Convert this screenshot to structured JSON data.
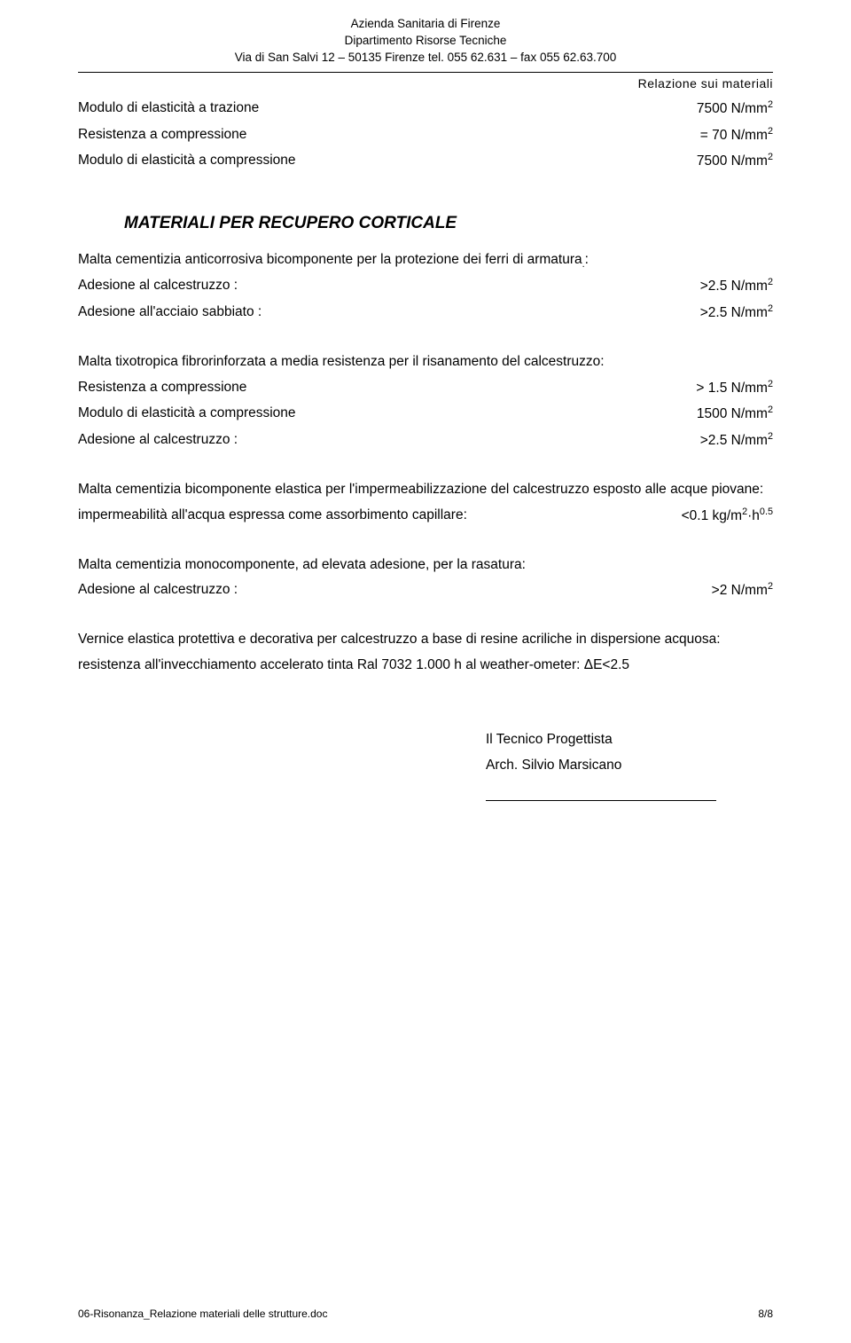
{
  "header": {
    "line1": "Azienda  Sanitaria  di  Firenze",
    "line2": "Dipartimento Risorse Tecniche",
    "line3": "Via  di San Salvi 12 – 50135 Firenze tel. 055 62.631 – fax 055 62.63.700"
  },
  "subtitle": "Relazione sui materiali",
  "top_props": [
    {
      "label": "Modulo di elasticità a trazione",
      "value": "7500 N/mm",
      "sup": "2"
    },
    {
      "label": "Resistenza a compressione",
      "value": "= 70 N/mm",
      "sup": "2"
    },
    {
      "label": "Modulo di elasticità a compressione",
      "value": "7500 N/mm",
      "sup": "2"
    }
  ],
  "section_title": "MATERIALI PER RECUPERO CORTICALE",
  "block1": {
    "intro": "Malta cementizia anticorrosiva bicomponente per la protezione dei ferri di armatura",
    "rows": [
      {
        "label": "Adesione al calcestruzzo :",
        "value": ">2.5 N/mm",
        "sup": "2"
      },
      {
        "label": "Adesione all'acciaio sabbiato :",
        "value": ">2.5 N/mm",
        "sup": "2"
      }
    ]
  },
  "block2": {
    "intro": "Malta tixotropica fibrorinforzata a media resistenza per il risanamento del calcestruzzo:",
    "rows": [
      {
        "label": "Resistenza a compressione",
        "value": "> 1.5 N/mm",
        "sup": "2"
      },
      {
        "label": "Modulo di elasticità a compressione",
        "value": "1500 N/mm",
        "sup": "2"
      },
      {
        "label": "Adesione al calcestruzzo :",
        "value": ">2.5 N/mm",
        "sup": "2"
      }
    ]
  },
  "block3": {
    "intro1": "Malta cementizia bicomponente elastica per l'impermeabilizzazione del calcestruzzo esposto alle acque piovane:",
    "row_label": "impermeabilità all'acqua espressa come assorbimento capillare:",
    "row_value": "<0.1 kg/m",
    "row_sup": "2",
    "row_tail": "·h",
    "row_sup2": "0.5"
  },
  "block4": {
    "intro": "Malta cementizia monocomponente, ad elevata adesione, per la rasatura:",
    "row_label": "Adesione al calcestruzzo :",
    "row_value": ">2 N/mm",
    "row_sup": "2"
  },
  "block5": {
    "intro": "Vernice elastica protettiva e decorativa per calcestruzzo a base di resine acriliche in dispersione acquosa:",
    "line2": "resistenza all'invecchiamento accelerato tinta Ral 7032 1.000 h al weather-ometer: ΔE<2.5"
  },
  "signature": {
    "role": "Il Tecnico Progettista",
    "name": "Arch. Silvio Marsicano"
  },
  "footer": {
    "left": "06-Risonanza_Relazione materiali delle strutture.doc",
    "right": "8/8"
  }
}
